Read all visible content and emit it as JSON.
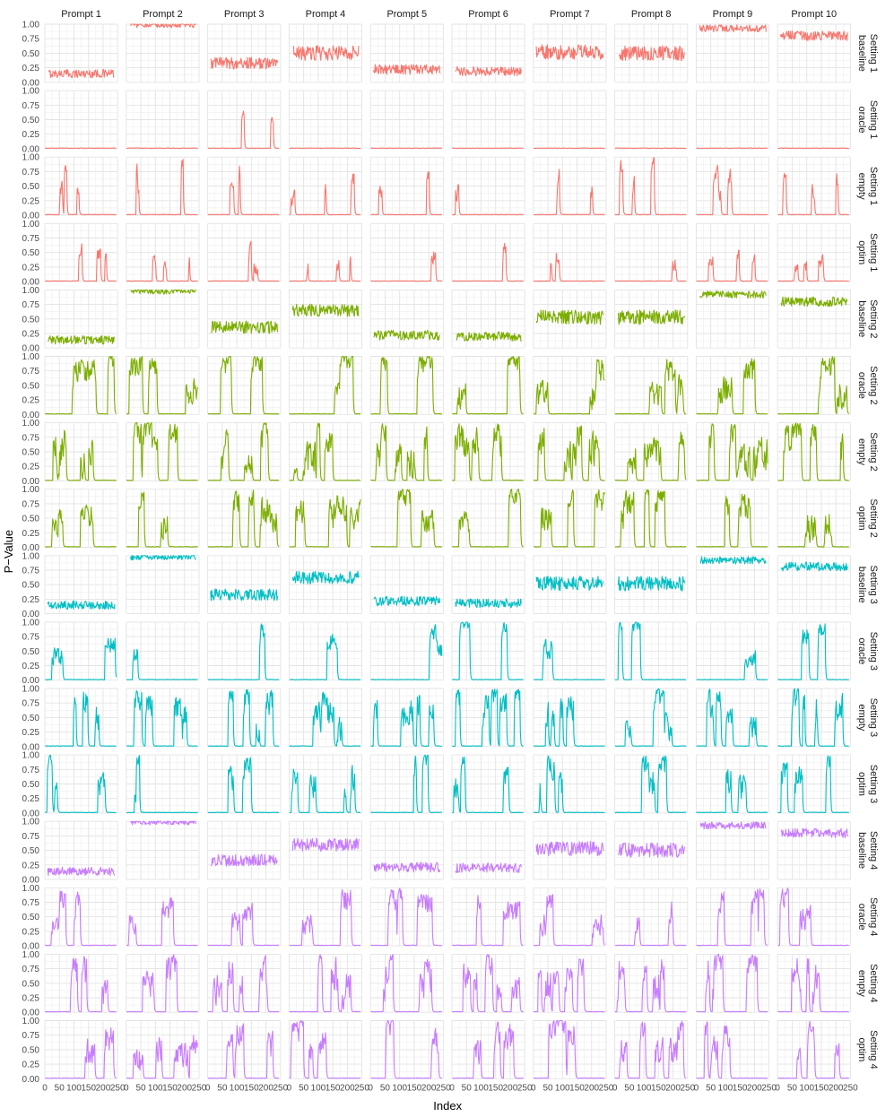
{
  "chart_data": {
    "type": "line",
    "layout": "facet_grid",
    "xlabel": "Index",
    "ylabel": "P−Value",
    "xlim": [
      0,
      250
    ],
    "ylim": [
      0,
      1
    ],
    "x_ticks": [
      0,
      50,
      100,
      150,
      200,
      250
    ],
    "x_tick_labels": [
      "0",
      "50",
      "100",
      "150",
      "200",
      "250"
    ],
    "y_ticks": [
      0,
      0.25,
      0.5,
      0.75,
      1.0
    ],
    "y_tick_labels": [
      "0.00",
      "0.25",
      "0.50",
      "0.75",
      "1.00"
    ],
    "columns": [
      "Prompt 1",
      "Prompt 2",
      "Prompt 3",
      "Prompt 4",
      "Prompt 5",
      "Prompt 6",
      "Prompt 7",
      "Prompt 8",
      "Prompt 9",
      "Prompt 10"
    ],
    "rows": [
      {
        "method": "baseline",
        "setting": "Setting 1"
      },
      {
        "method": "oracle",
        "setting": "Setting 1"
      },
      {
        "method": "empty",
        "setting": "Setting 1"
      },
      {
        "method": "optim",
        "setting": "Setting 1"
      },
      {
        "method": "baseline",
        "setting": "Setting 2"
      },
      {
        "method": "oracle",
        "setting": "Setting 2"
      },
      {
        "method": "empty",
        "setting": "Setting 2"
      },
      {
        "method": "optim",
        "setting": "Setting 2"
      },
      {
        "method": "baseline",
        "setting": "Setting 3"
      },
      {
        "method": "oracle",
        "setting": "Setting 3"
      },
      {
        "method": "empty",
        "setting": "Setting 3"
      },
      {
        "method": "optim",
        "setting": "Setting 3"
      },
      {
        "method": "baseline",
        "setting": "Setting 4"
      },
      {
        "method": "oracle",
        "setting": "Setting 4"
      },
      {
        "method": "empty",
        "setting": "Setting 4"
      },
      {
        "method": "optim",
        "setting": "Setting 4"
      }
    ],
    "setting_colors": {
      "Setting 1": "#F8766D",
      "Setting 2": "#7CAE00",
      "Setting 3": "#00BFC4",
      "Setting 4": "#C77CFF"
    },
    "baseline_levels": {
      "Setting 1": [
        0.15,
        0.99,
        0.33,
        0.5,
        0.22,
        0.19,
        0.52,
        0.5,
        0.93,
        0.8
      ],
      "Setting 2": [
        0.14,
        0.98,
        0.36,
        0.65,
        0.22,
        0.2,
        0.53,
        0.53,
        0.92,
        0.8
      ],
      "Setting 3": [
        0.15,
        0.98,
        0.33,
        0.62,
        0.22,
        0.18,
        0.52,
        0.52,
        0.92,
        0.81
      ],
      "Setting 4": [
        0.14,
        0.99,
        0.33,
        0.6,
        0.21,
        0.2,
        0.53,
        0.5,
        0.93,
        0.8
      ]
    },
    "baseline_ranges": {
      "Setting 1": [
        [
          12,
          238
        ],
        [
          15,
          240
        ],
        [
          10,
          240
        ],
        [
          15,
          240
        ],
        [
          10,
          240
        ],
        [
          12,
          238
        ],
        [
          10,
          240
        ],
        [
          15,
          240
        ],
        [
          12,
          240
        ],
        [
          10,
          240
        ]
      ],
      "Setting 2": [
        [
          12,
          238
        ],
        [
          15,
          240
        ],
        [
          12,
          240
        ],
        [
          12,
          240
        ],
        [
          12,
          238
        ],
        [
          15,
          240
        ],
        [
          10,
          240
        ],
        [
          12,
          240
        ],
        [
          12,
          240
        ],
        [
          12,
          240
        ]
      ],
      "Setting 3": [
        [
          10,
          240
        ],
        [
          15,
          240
        ],
        [
          10,
          240
        ],
        [
          12,
          240
        ],
        [
          12,
          238
        ],
        [
          12,
          238
        ],
        [
          10,
          240
        ],
        [
          12,
          240
        ],
        [
          15,
          240
        ],
        [
          12,
          240
        ]
      ],
      "Setting 4": [
        [
          10,
          240
        ],
        [
          15,
          240
        ],
        [
          10,
          240
        ],
        [
          12,
          240
        ],
        [
          12,
          238
        ],
        [
          12,
          238
        ],
        [
          10,
          240
        ],
        [
          12,
          240
        ],
        [
          15,
          240
        ],
        [
          12,
          240
        ]
      ]
    },
    "note": "Each panel plots a p-value series over Index 0-250; baseline rows hover near the listed levels, oracle/empty/optim rows show bursts of high p-values."
  }
}
